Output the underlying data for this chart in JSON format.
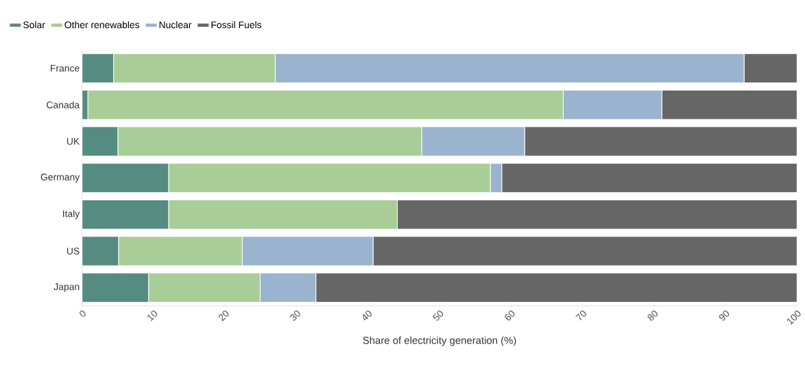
{
  "chart_data": {
    "type": "bar",
    "orientation": "horizontal",
    "stacked": true,
    "categories": [
      "France",
      "Canada",
      "UK",
      "Germany",
      "Italy",
      "US",
      "Japan"
    ],
    "series": [
      {
        "name": "Solar",
        "color": "#568b82",
        "values": [
          4.4,
          0.8,
          5.0,
          12.1,
          12.1,
          5.1,
          9.3
        ]
      },
      {
        "name": "Other renewables",
        "color": "#a9cd98",
        "values": [
          22.6,
          66.5,
          42.5,
          45.0,
          32.0,
          17.3,
          15.6
        ]
      },
      {
        "name": "Nuclear",
        "color": "#9ab3ce",
        "values": [
          65.6,
          13.8,
          14.4,
          1.6,
          0,
          18.3,
          7.8
        ]
      },
      {
        "name": "Fossil Fuels",
        "color": "#666666",
        "values": [
          7.4,
          18.9,
          38.1,
          41.3,
          55.9,
          59.3,
          67.3
        ]
      }
    ],
    "xlabel": "Share of electricity generation (%)",
    "xlim": [
      0,
      100
    ],
    "xticks": [
      0,
      10,
      20,
      30,
      40,
      50,
      60,
      70,
      80,
      90,
      100
    ],
    "grid": false,
    "legend": "top left"
  }
}
